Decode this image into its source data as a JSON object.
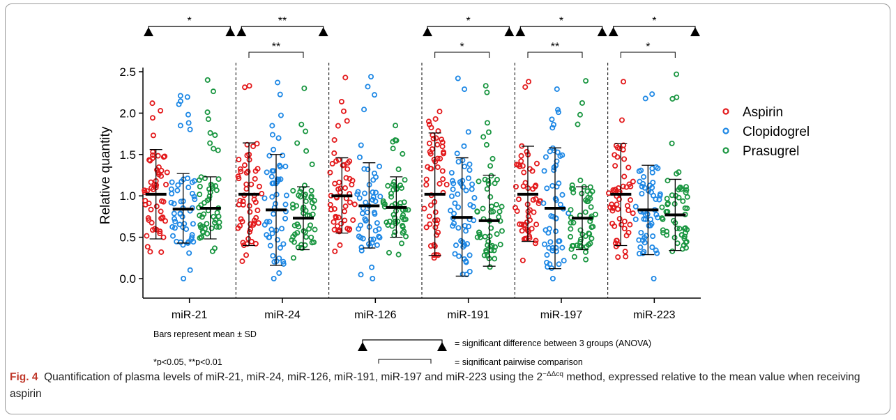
{
  "chart_data": {
    "type": "scatter",
    "ylabel": "Relative quantity",
    "ylim": [
      0.0,
      2.5
    ],
    "yticks": [
      "0.0",
      "0.5",
      "1.0",
      "1.5",
      "2.0",
      "2.5"
    ],
    "categories": [
      "miR-21",
      "miR-24",
      "miR-126",
      "miR-191",
      "miR-197",
      "miR-223"
    ],
    "legend_position": "right",
    "series": [
      {
        "name": "Aspirin",
        "color": "#e31a1c",
        "mean": [
          1.02,
          1.02,
          1.0,
          1.02,
          1.02,
          1.02
        ],
        "sd_low": [
          0.48,
          0.4,
          0.55,
          0.28,
          0.45,
          0.4
        ],
        "sd_high": [
          1.56,
          1.64,
          1.46,
          1.76,
          1.6,
          1.63
        ],
        "max": [
          2.12,
          2.33,
          2.43,
          2.02,
          2.38,
          2.38
        ],
        "min": [
          0.32,
          0.21,
          0.33,
          0.25,
          0.22,
          0.26
        ]
      },
      {
        "name": "Clopidogrel",
        "color": "#1e88e5",
        "mean": [
          0.84,
          0.83,
          0.88,
          0.74,
          0.85,
          0.83
        ],
        "sd_low": [
          0.43,
          0.16,
          0.37,
          0.03,
          0.12,
          0.29
        ],
        "sd_high": [
          1.27,
          1.5,
          1.4,
          1.46,
          1.58,
          1.37
        ],
        "max": [
          2.21,
          2.37,
          2.44,
          2.42,
          2.29,
          2.23
        ],
        "min": [
          0.0,
          0.0,
          0.0,
          0.05,
          0.0,
          0.0
        ]
      },
      {
        "name": "Prasugrel",
        "color": "#1a9641",
        "mean": [
          0.85,
          0.73,
          0.86,
          0.7,
          0.73,
          0.77
        ],
        "sd_low": [
          0.48,
          0.35,
          0.5,
          0.15,
          0.35,
          0.34
        ],
        "sd_high": [
          1.23,
          1.11,
          1.23,
          1.25,
          1.11,
          1.2
        ],
        "max": [
          2.4,
          2.3,
          1.85,
          2.33,
          2.39,
          2.47
        ],
        "min": [
          0.33,
          0.25,
          0.29,
          0.14,
          0.23,
          0.33
        ]
      }
    ],
    "anova": [
      {
        "category": "miR-21",
        "label": "*"
      },
      {
        "category": "miR-24",
        "label": "**"
      },
      {
        "category": "miR-191",
        "label": "*"
      },
      {
        "category": "miR-197",
        "label": "*"
      },
      {
        "category": "miR-223",
        "label": "*"
      }
    ],
    "pairwise": [
      {
        "category": "miR-24",
        "label": "**"
      },
      {
        "category": "miR-191",
        "label": "*"
      },
      {
        "category": "miR-197",
        "label": "**"
      },
      {
        "category": "miR-223",
        "label": "*"
      }
    ],
    "notes": {
      "bars": "Bars represent mean ± SD",
      "pvalues": "*p<0.05, **p<0.01",
      "anova_key": "= significant difference between 3 groups (ANOVA)",
      "pairwise_key": "= significant pairwise comparison"
    }
  },
  "caption": {
    "label": "Fig. 4",
    "text_before": "Quantification of plasma levels of miR-21, miR-24, miR-126, miR-191, miR-197 and miR-223 using the 2",
    "superscript": "−ΔΔcq",
    "text_after": " method, expressed relative to the mean value when receiving aspirin"
  }
}
